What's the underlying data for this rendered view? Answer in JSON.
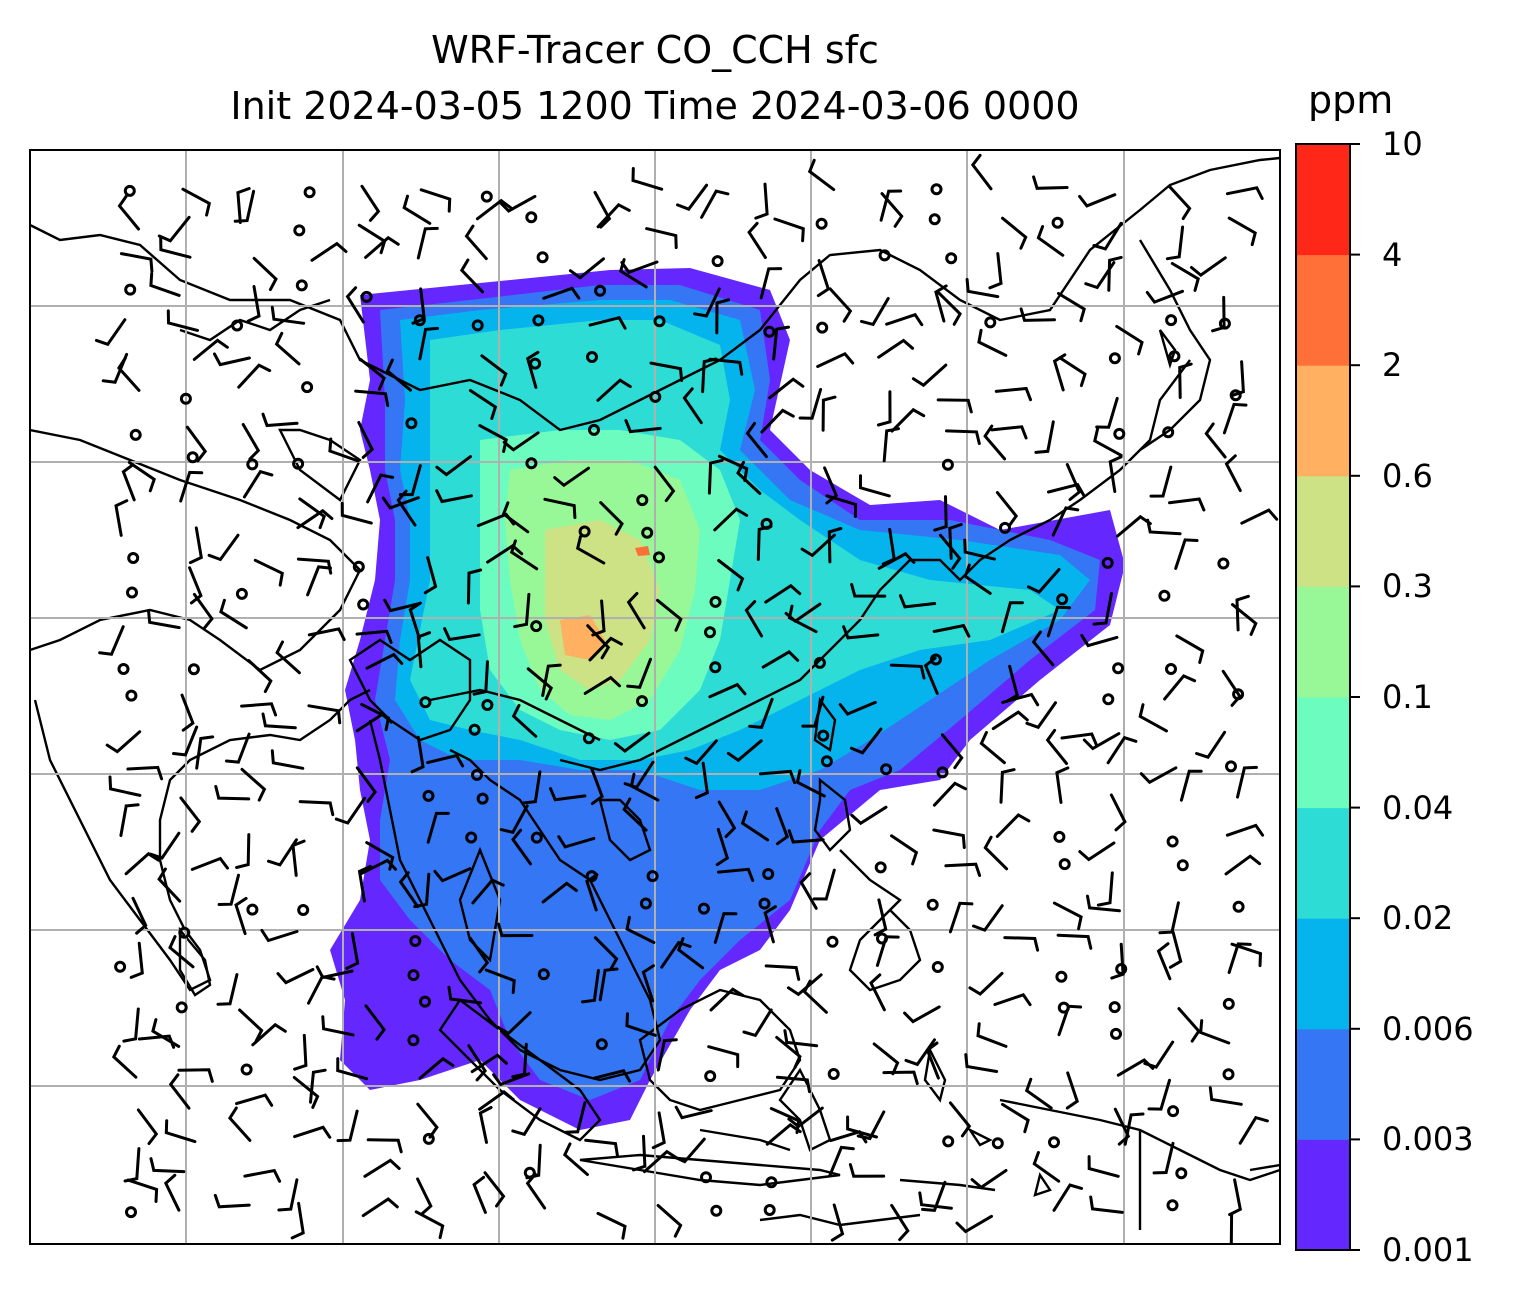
{
  "title_line1": "WRF-Tracer CO_CCH sfc",
  "title_line2": "Init 2024-03-05 1200 Time 2024-03-06 0000",
  "colorbar": {
    "unit": "ppm",
    "levels": [
      "0.001",
      "0.003",
      "0.006",
      "0.02",
      "0.04",
      "0.1",
      "0.3",
      "0.6",
      "2",
      "4",
      "10"
    ],
    "colors": [
      "#6428ff",
      "#3476f4",
      "#05b4ed",
      "#2ddcd5",
      "#6cfcc0",
      "#98f898",
      "#cde185",
      "#ffb060",
      "#ff7038",
      "#ff2818"
    ]
  },
  "map": {
    "gridlines": true,
    "layers": [
      "coastlines",
      "borders",
      "concentration-fill",
      "wind-barbs",
      "calm-circles"
    ]
  }
}
